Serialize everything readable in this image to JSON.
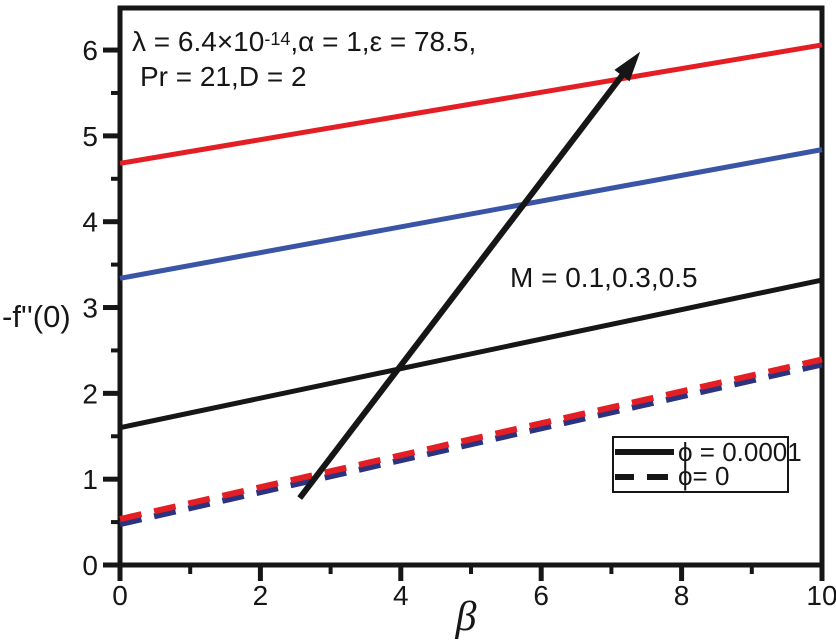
{
  "chart_data": {
    "type": "line",
    "title": "",
    "xlabel": "β",
    "ylabel": "-f''(0)",
    "xlim": [
      0,
      10
    ],
    "ylim": [
      0,
      6.49
    ],
    "grid": false,
    "x_major_ticks": [
      0,
      2,
      4,
      6,
      8,
      10
    ],
    "x_minor_ticks": [
      1,
      3,
      5,
      7,
      9
    ],
    "y_major_ticks": [
      0,
      1,
      2,
      3,
      4,
      5,
      6
    ],
    "y_minor_ticks": [
      0.5,
      1.5,
      2.5,
      3.5,
      4.5,
      5.5
    ],
    "series": [
      {
        "key": "phi0-navy-dashed",
        "name": "phi = 0, navy dashed",
        "color": "#2b3280",
        "style": "dashed",
        "width": 6,
        "dy": 2,
        "x": [
          0,
          10
        ],
        "y": [
          0.5,
          2.36
        ]
      },
      {
        "key": "phi0-red-dashed",
        "name": "phi = 0, red dashed",
        "color": "#e31e24",
        "style": "dashed",
        "width": 6,
        "dy": -3,
        "x": [
          0,
          10
        ],
        "y": [
          0.5,
          2.36
        ]
      },
      {
        "key": "m01-black-solid",
        "name": "phi = 0.0001, M = 0.1",
        "color": "#161616",
        "style": "solid",
        "width": 5,
        "dy": 0,
        "x": [
          0,
          10
        ],
        "y": [
          1.6,
          3.32
        ]
      },
      {
        "key": "m03-blue-solid",
        "name": "phi = 0.0001, M = 0.3",
        "color": "#3a55a5",
        "style": "solid",
        "width": 5,
        "dy": 0,
        "x": [
          0,
          10
        ],
        "y": [
          3.34,
          4.84
        ]
      },
      {
        "key": "m05-red-solid",
        "name": "phi = 0.0001, M = 0.5",
        "color": "#e31e24",
        "style": "solid",
        "width": 5,
        "dy": 0,
        "x": [
          0,
          10
        ],
        "y": [
          4.68,
          6.06
        ]
      }
    ],
    "arrow": {
      "x1": 2.56,
      "y1": 0.78,
      "x2": 7.41,
      "y2": 5.98,
      "color": "#161616",
      "width": 6
    },
    "legend_position": "lower right"
  },
  "annotations": {
    "params_line1_pre": "λ = 6.4×10",
    "params_line1_sup": "-14",
    "params_line1_post": ",α = 1,ε = 78.5,",
    "params_line2": "Pr = 21,D = 2",
    "m_label": "M = 0.1,0.3,0.5"
  },
  "axis": {
    "xlabel": "β",
    "ylabel": "-f''(0)"
  },
  "legend": {
    "items": [
      {
        "style": "solid",
        "label": "ϕ = 0.0001"
      },
      {
        "style": "dashed",
        "label": "ϕ= 0"
      }
    ]
  },
  "colors": {
    "red": "#e31e24",
    "blue": "#3a55a5",
    "navy": "#2b3280",
    "black": "#161616",
    "background": "#ffffff"
  }
}
